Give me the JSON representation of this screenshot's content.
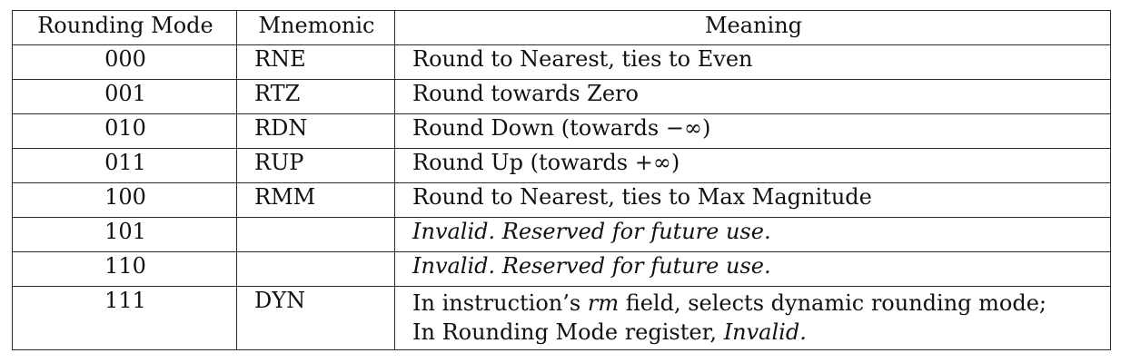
{
  "table": {
    "headers": [
      "Rounding Mode",
      "Mnemonic",
      "Meaning"
    ],
    "rows": [
      {
        "mode": "000",
        "mnemonic": "RNE",
        "meaning": "Round to Nearest, ties to Even"
      },
      {
        "mode": "001",
        "mnemonic": "RTZ",
        "meaning": "Round towards Zero"
      },
      {
        "mode": "010",
        "mnemonic": "RDN",
        "meaning": "Round Down (towards −∞)"
      },
      {
        "mode": "011",
        "mnemonic": "RUP",
        "meaning": "Round Up (towards +∞)"
      },
      {
        "mode": "100",
        "mnemonic": "RMM",
        "meaning": "Round to Nearest, ties to Max Magnitude"
      },
      {
        "mode": "101",
        "mnemonic": "",
        "meaning": "Invalid. Reserved for future use."
      },
      {
        "mode": "110",
        "mnemonic": "",
        "meaning": "Invalid. Reserved for future use."
      },
      {
        "mode": "111",
        "mnemonic": "DYN",
        "meaning_line1_a": "In instruction’s ",
        "meaning_line1_em": "rm",
        "meaning_line1_b": " field, selects dynamic rounding mode;",
        "meaning_line2_a": "In Rounding Mode register, ",
        "meaning_line2_em": "Invalid."
      }
    ]
  }
}
